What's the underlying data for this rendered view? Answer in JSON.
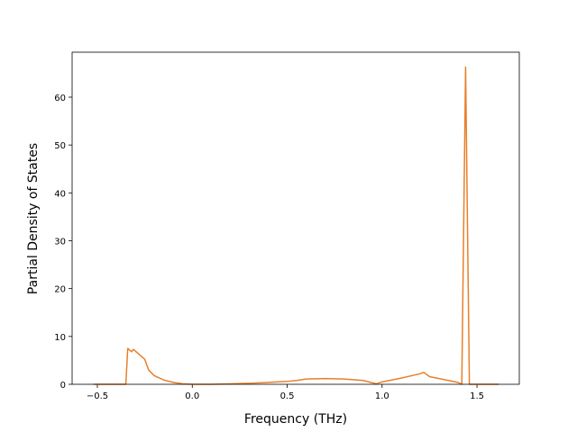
{
  "chart_data": {
    "type": "line",
    "xlabel": "Frequency (THz)",
    "ylabel": "Partial Density of States",
    "x": [
      -0.52,
      -0.35,
      -0.34,
      -0.32,
      -0.31,
      -0.25,
      -0.23,
      -0.2,
      -0.15,
      -0.1,
      -0.05,
      0.0,
      0.1,
      0.2,
      0.3,
      0.4,
      0.5,
      0.55,
      0.6,
      0.7,
      0.8,
      0.9,
      0.95,
      0.97,
      1.0,
      1.1,
      1.2,
      1.22,
      1.25,
      1.3,
      1.4,
      1.42,
      1.44,
      1.46,
      1.5,
      1.615
    ],
    "series": [
      {
        "color": "#e8802a",
        "values": [
          0,
          0,
          7.5,
          6.8,
          7.3,
          5.2,
          3.0,
          1.8,
          0.9,
          0.4,
          0.1,
          0,
          0,
          0.1,
          0.2,
          0.4,
          0.6,
          0.8,
          1.1,
          1.2,
          1.1,
          0.8,
          0.3,
          0.1,
          0.5,
          1.3,
          2.2,
          2.5,
          1.6,
          1.2,
          0.4,
          0,
          66.3,
          0,
          0,
          0
        ]
      }
    ],
    "xlim": [
      -0.633,
      1.723
    ],
    "ylim": [
      0,
      69.4
    ],
    "xticks": [
      {
        "value": -0.5,
        "label": "−0.5"
      },
      {
        "value": 0.0,
        "label": "0.0"
      },
      0.5,
      {
        "value": 1.0,
        "label": "1.0"
      },
      1.5
    ],
    "yticks": [
      0,
      10,
      20,
      30,
      40,
      50,
      60
    ]
  }
}
